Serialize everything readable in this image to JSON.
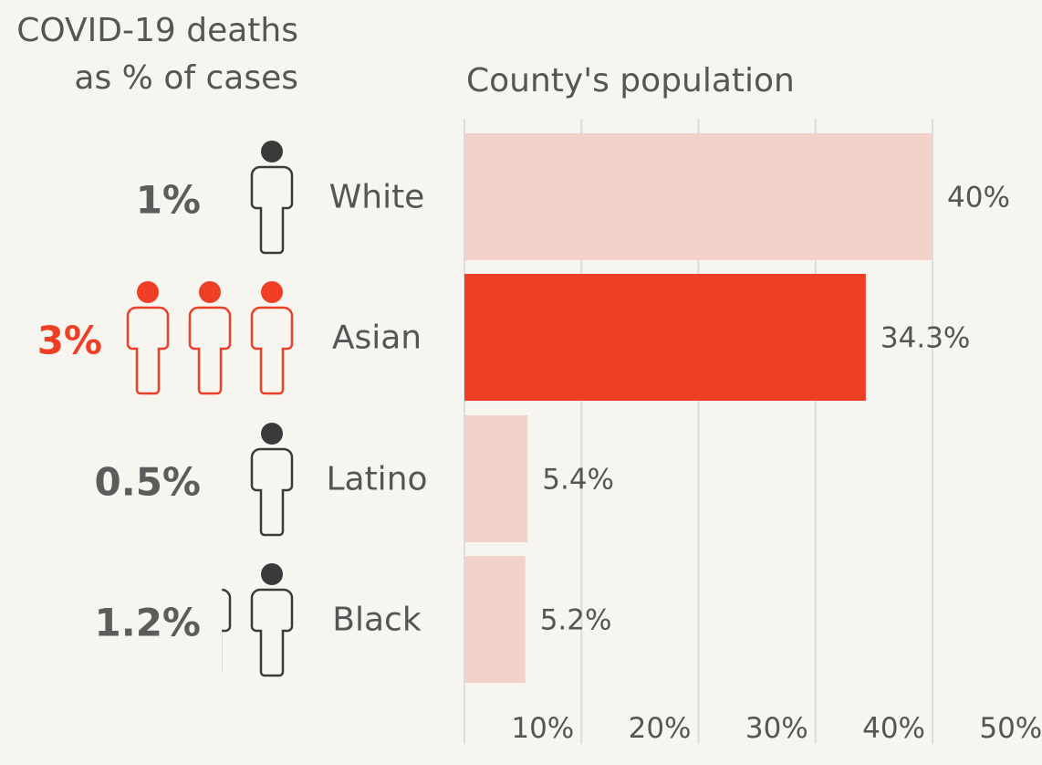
{
  "left_header": {
    "line1": "COVID-19 deaths",
    "line2": "as % of cases"
  },
  "right_header": "County's population",
  "colors": {
    "highlight": "#ee3e26",
    "bar_light": "#f2d1c8",
    "text": "#555555",
    "pct_dark": "#5c5c5c",
    "icon_dark": "#3a3a3a",
    "grid": "#dcdcdc"
  },
  "chart_data": {
    "type": "bar",
    "orientation": "horizontal",
    "categories": [
      "White",
      "Asian",
      "Latino",
      "Black"
    ],
    "values": [
      40,
      34.3,
      5.4,
      5.2
    ],
    "value_labels": [
      "40%",
      "34.3%",
      "5.4%",
      "5.2%"
    ],
    "highlight": "Asian",
    "xlim": [
      0,
      50
    ],
    "xticks": [
      "10%",
      "20%",
      "30%",
      "40%",
      "50%"
    ],
    "grid": true,
    "death_rates": {
      "values": [
        1,
        3,
        0.5,
        1.2
      ],
      "labels": [
        "1%",
        "3%",
        "0.5%",
        "1.2%"
      ],
      "icon": "person-icon"
    }
  }
}
